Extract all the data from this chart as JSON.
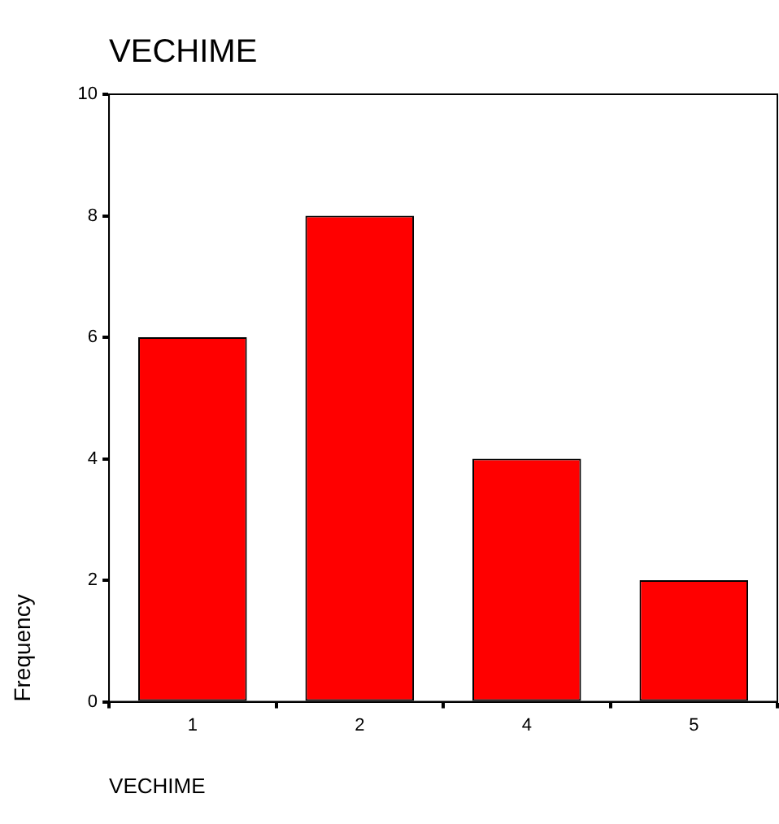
{
  "chart_data": {
    "type": "bar",
    "title": "VECHIME",
    "xlabel": "VECHIME",
    "ylabel": "Frequency",
    "categories": [
      "1",
      "2",
      "4",
      "5"
    ],
    "values": [
      6,
      8,
      4,
      2
    ],
    "color": "#ff0000",
    "ylim": [
      0,
      10
    ],
    "yticks": [
      0,
      2,
      4,
      6,
      8,
      10
    ],
    "grid": false,
    "legend": false
  }
}
